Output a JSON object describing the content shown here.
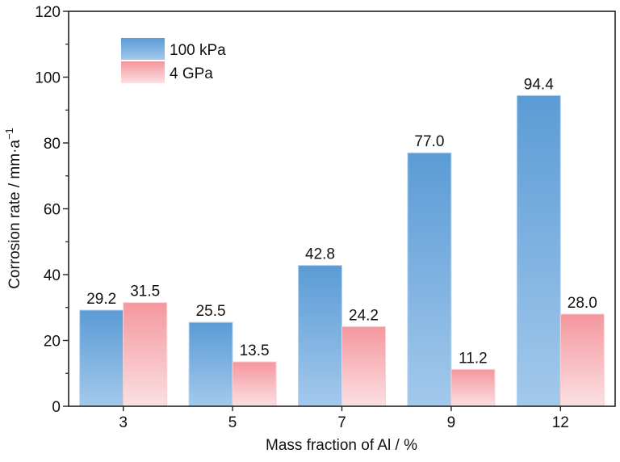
{
  "chart_data": {
    "type": "bar",
    "categories": [
      "3",
      "5",
      "7",
      "9",
      "12"
    ],
    "series": [
      {
        "name": "100 kPa",
        "values": [
          29.2,
          25.5,
          42.8,
          77.0,
          94.4
        ],
        "labels": [
          "29.2",
          "25.5",
          "42.8",
          "77.0",
          "94.4"
        ],
        "color_top": "#5b9bd5",
        "color_bottom": "#a3c9ec"
      },
      {
        "name": "4 GPa",
        "values": [
          31.5,
          13.5,
          24.2,
          11.2,
          28.0
        ],
        "labels": [
          "31.5",
          "13.5",
          "24.2",
          "11.2",
          "28.0"
        ],
        "color_top": "#f4979d",
        "color_bottom": "#fbe0e3"
      }
    ],
    "title": "",
    "xlabel": "Mass fraction of Al / %",
    "ylabel": "Corrosion rate / mm·a",
    "ylabel_sup": "−1",
    "ylim": [
      0,
      120
    ],
    "yticks": [
      "0",
      "20",
      "40",
      "60",
      "80",
      "100",
      "120"
    ],
    "grid": false,
    "legend": "top-left"
  }
}
